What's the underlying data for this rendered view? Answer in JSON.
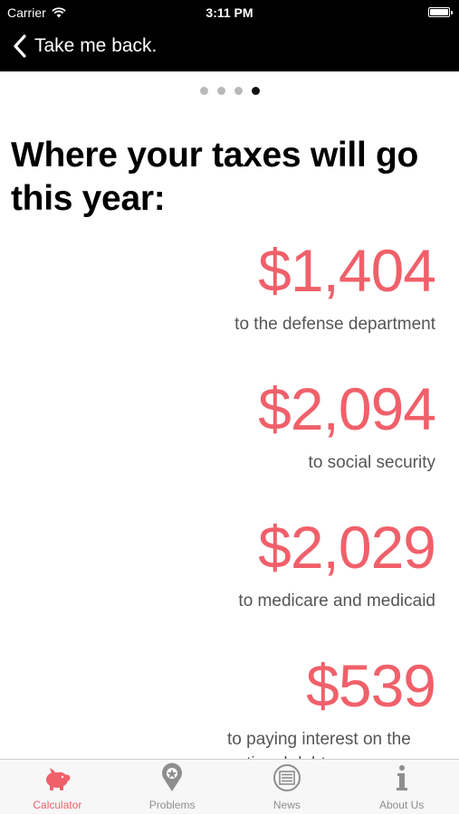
{
  "status_bar": {
    "carrier": "Carrier",
    "time": "3:11 PM"
  },
  "nav": {
    "back_label": "Take me back."
  },
  "pager": {
    "count": 4,
    "active_index": 3
  },
  "headline": "Where your taxes will go this year:",
  "items": [
    {
      "amount": "$1,404",
      "description": "to the defense department"
    },
    {
      "amount": "$2,094",
      "description": "to social security"
    },
    {
      "amount": "$2,029",
      "description": "to medicare and medicaid"
    },
    {
      "amount": "$539",
      "description": "to paying interest on the national debt"
    }
  ],
  "tabs": [
    {
      "label": "Calculator",
      "icon": "piggy-bank-icon",
      "active": true
    },
    {
      "label": "Problems",
      "icon": "map-pin-icon",
      "active": false
    },
    {
      "label": "News",
      "icon": "newspaper-icon",
      "active": false
    },
    {
      "label": "About Us",
      "icon": "info-icon",
      "active": false
    }
  ],
  "colors": {
    "accent": "#f0606a",
    "nav_bg": "#000000",
    "tab_inactive": "#8e8e8e"
  }
}
